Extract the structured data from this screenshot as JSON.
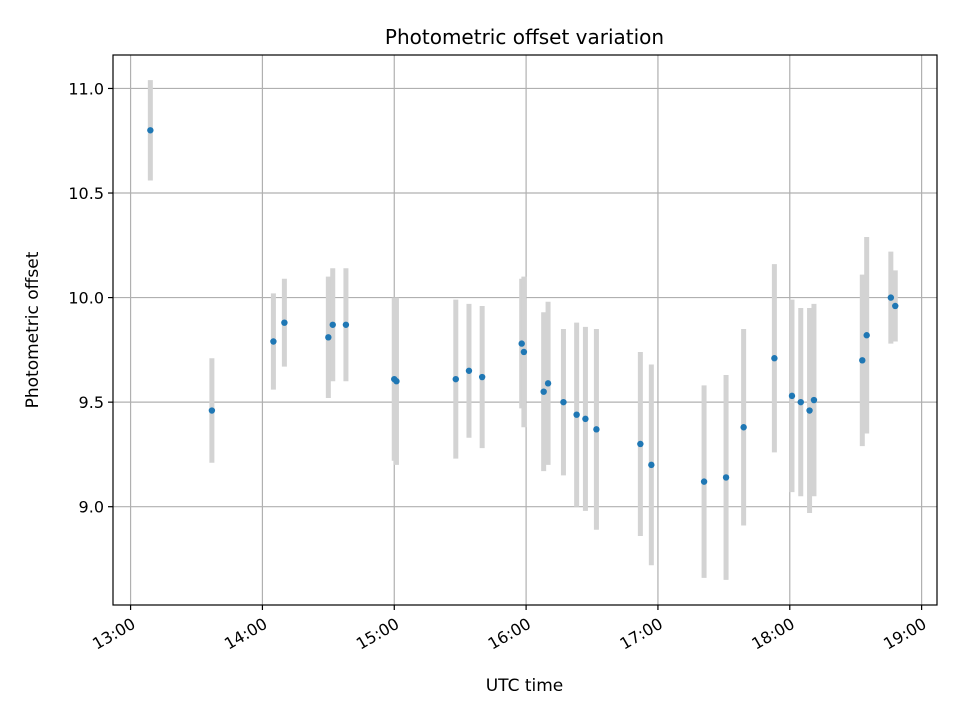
{
  "chart_data": {
    "type": "scatter",
    "title": "Photometric offset variation",
    "xlabel": "UTC time",
    "ylabel": "Photometric offset",
    "grid": true,
    "xlim": [
      "12:52",
      "19:07"
    ],
    "ylim": [
      8.53,
      11.16
    ],
    "x_ticks": [
      "13:00",
      "14:00",
      "15:00",
      "16:00",
      "17:00",
      "18:00",
      "19:00"
    ],
    "y_ticks": [
      "9.0",
      "9.5",
      "10.0",
      "10.5",
      "11.0"
    ],
    "colors": {
      "points": "#1f77b4",
      "errorbars": "#d3d3d3",
      "grid": "#b0b0b0"
    },
    "points": [
      {
        "x": "13:09",
        "y": 10.8,
        "err": 0.24
      },
      {
        "x": "13:37",
        "y": 9.46,
        "err": 0.25
      },
      {
        "x": "14:05",
        "y": 9.79,
        "err": 0.23
      },
      {
        "x": "14:10",
        "y": 9.88,
        "err": 0.21
      },
      {
        "x": "14:30",
        "y": 9.81,
        "err": 0.29
      },
      {
        "x": "14:32",
        "y": 9.87,
        "err": 0.27
      },
      {
        "x": "14:38",
        "y": 9.87,
        "err": 0.27
      },
      {
        "x": "15:00",
        "y": 9.61,
        "err": 0.39
      },
      {
        "x": "15:01",
        "y": 9.6,
        "err": 0.4
      },
      {
        "x": "15:28",
        "y": 9.61,
        "err": 0.38
      },
      {
        "x": "15:34",
        "y": 9.65,
        "err": 0.32
      },
      {
        "x": "15:40",
        "y": 9.62,
        "err": 0.34
      },
      {
        "x": "15:58",
        "y": 9.78,
        "err": 0.31
      },
      {
        "x": "15:59",
        "y": 9.74,
        "err": 0.36
      },
      {
        "x": "16:08",
        "y": 9.55,
        "err": 0.38
      },
      {
        "x": "16:10",
        "y": 9.59,
        "err": 0.39
      },
      {
        "x": "16:17",
        "y": 9.5,
        "err": 0.35
      },
      {
        "x": "16:23",
        "y": 9.44,
        "err": 0.44
      },
      {
        "x": "16:27",
        "y": 9.42,
        "err": 0.44
      },
      {
        "x": "16:32",
        "y": 9.37,
        "err": 0.48
      },
      {
        "x": "16:52",
        "y": 9.3,
        "err": 0.44
      },
      {
        "x": "16:57",
        "y": 9.2,
        "err": 0.48
      },
      {
        "x": "17:21",
        "y": 9.12,
        "err": 0.46
      },
      {
        "x": "17:31",
        "y": 9.14,
        "err": 0.49
      },
      {
        "x": "17:39",
        "y": 9.38,
        "err": 0.47
      },
      {
        "x": "17:53",
        "y": 9.71,
        "err": 0.45
      },
      {
        "x": "18:01",
        "y": 9.53,
        "err": 0.46
      },
      {
        "x": "18:05",
        "y": 9.5,
        "err": 0.45
      },
      {
        "x": "18:09",
        "y": 9.46,
        "err": 0.49
      },
      {
        "x": "18:11",
        "y": 9.51,
        "err": 0.46
      },
      {
        "x": "18:33",
        "y": 9.7,
        "err": 0.41
      },
      {
        "x": "18:35",
        "y": 9.82,
        "err": 0.47
      },
      {
        "x": "18:46",
        "y": 10.0,
        "err": 0.22
      },
      {
        "x": "18:48",
        "y": 9.96,
        "err": 0.17
      }
    ]
  }
}
